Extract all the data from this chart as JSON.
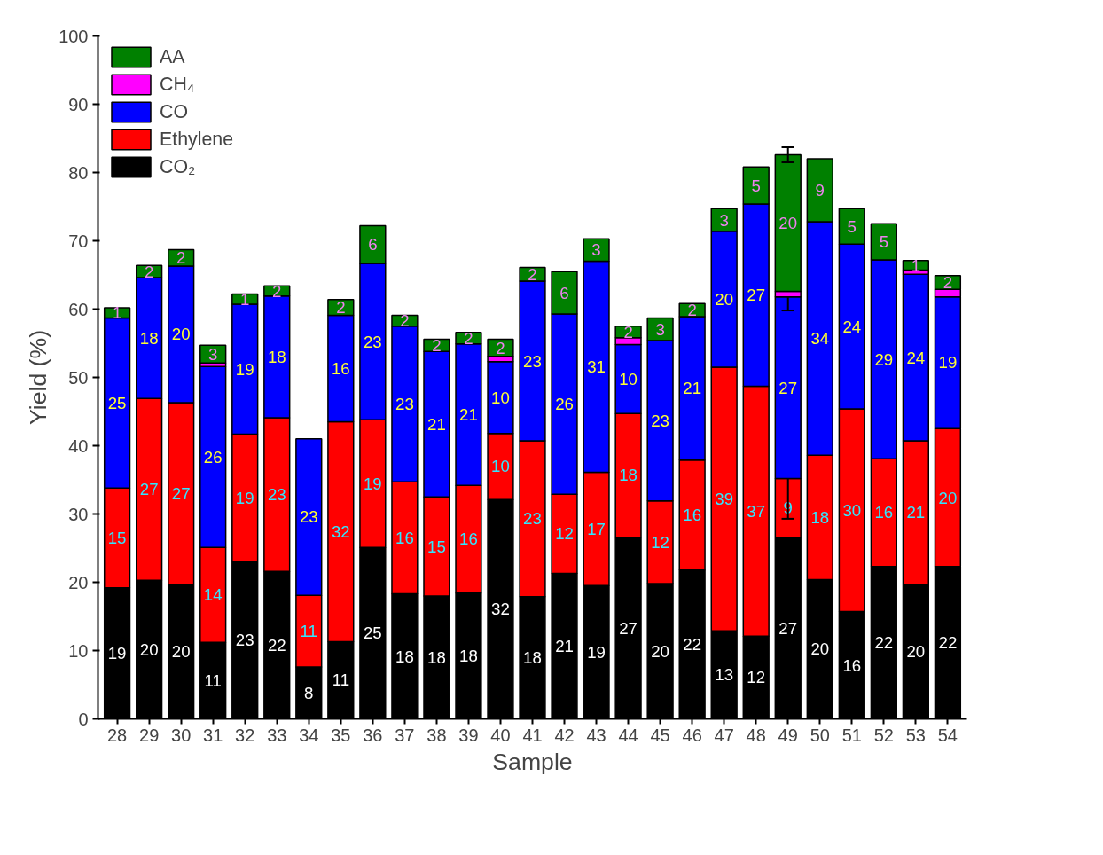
{
  "chart_data": {
    "type": "bar",
    "stacked": true,
    "xlabel": "Sample",
    "ylabel": "Yield (%)",
    "categories": [
      "28",
      "29",
      "30",
      "31",
      "32",
      "33",
      "34",
      "35",
      "36",
      "37",
      "38",
      "39",
      "40",
      "41",
      "42",
      "43",
      "44",
      "45",
      "46",
      "47",
      "48",
      "49",
      "50",
      "51",
      "52",
      "53",
      "54"
    ],
    "ylim": [
      0,
      100
    ],
    "yticks": [
      0,
      10,
      20,
      30,
      40,
      50,
      60,
      70,
      80,
      90,
      100
    ],
    "grid": false,
    "legend": "top left",
    "series": [
      {
        "name": "CO₂",
        "color": "#000000",
        "values": [
          19.2,
          20.3,
          19.7,
          11.2,
          23.1,
          21.6,
          7.6,
          11.3,
          25.1,
          18.3,
          18.0,
          18.4,
          32.1,
          17.9,
          21.3,
          19.5,
          26.6,
          19.8,
          21.8,
          12.9,
          12.1,
          26.6,
          20.4,
          15.7,
          22.3,
          19.7,
          22.3
        ],
        "value_labels": [
          "19",
          "20",
          "20",
          "11",
          "23",
          "22",
          "8",
          "11",
          "25",
          "18",
          "18",
          "18",
          "32",
          "18",
          "21",
          "19",
          "27",
          "20",
          "22",
          "13",
          "12",
          "27",
          "20",
          "16",
          "22",
          "20",
          "22"
        ]
      },
      {
        "name": "Ethylene",
        "color": "#ff0000",
        "values": [
          14.6,
          26.6,
          26.6,
          13.9,
          18.6,
          22.5,
          10.5,
          32.2,
          18.7,
          16.4,
          14.5,
          15.8,
          9.7,
          22.8,
          11.6,
          16.6,
          18.1,
          12.1,
          16.1,
          38.6,
          36.6,
          8.6,
          18.2,
          29.7,
          15.8,
          21.0,
          20.2
        ],
        "value_labels": [
          "15",
          "27",
          "27",
          "14",
          "19",
          "23",
          "11",
          "32",
          "19",
          "16",
          "15",
          "16",
          "10",
          "23",
          "12",
          "17",
          "18",
          "12",
          "16",
          "39",
          "37",
          "9",
          "18",
          "30",
          "16",
          "21",
          "20"
        ],
        "errors": [
          null,
          null,
          null,
          null,
          null,
          null,
          null,
          null,
          null,
          null,
          null,
          null,
          null,
          null,
          null,
          null,
          null,
          null,
          null,
          null,
          null,
          5.9,
          null,
          null,
          null,
          null,
          null
        ]
      },
      {
        "name": "CO",
        "color": "#0000ff",
        "values": [
          24.9,
          17.7,
          20.0,
          26.5,
          19.0,
          17.8,
          22.9,
          15.6,
          22.9,
          22.8,
          21.3,
          20.7,
          10.5,
          23.4,
          26.4,
          30.9,
          10.1,
          23.5,
          21.0,
          19.9,
          26.7,
          26.6,
          34.2,
          24.1,
          29.1,
          24.4,
          19.3
        ],
        "value_labels": [
          "25",
          "18",
          "20",
          "26",
          "19",
          "18",
          "23",
          "16",
          "23",
          "23",
          "21",
          "21",
          "10",
          "23",
          "26",
          "31",
          "10",
          "23",
          "21",
          "20",
          "27",
          "27",
          "34",
          "24",
          "29",
          "24",
          "19"
        ],
        "errors": [
          null,
          null,
          null,
          null,
          null,
          null,
          null,
          null,
          null,
          null,
          null,
          null,
          null,
          null,
          null,
          null,
          null,
          null,
          null,
          null,
          null,
          2.0,
          null,
          null,
          null,
          null,
          null
        ]
      },
      {
        "name": "CH₄",
        "color": "#ff00ff",
        "values": [
          null,
          null,
          null,
          0.5,
          null,
          null,
          null,
          null,
          null,
          null,
          null,
          null,
          0.8,
          null,
          null,
          null,
          1.0,
          null,
          null,
          null,
          null,
          0.8,
          null,
          null,
          null,
          0.6,
          1.1
        ]
      },
      {
        "name": "AA",
        "color": "#008000",
        "values": [
          1.5,
          1.8,
          2.4,
          2.6,
          1.5,
          1.5,
          null,
          2.3,
          5.5,
          1.6,
          1.8,
          1.7,
          2.5,
          2.0,
          6.2,
          3.3,
          1.7,
          3.3,
          1.9,
          3.3,
          5.4,
          20.0,
          9.2,
          5.2,
          5.3,
          1.4,
          2.0
        ],
        "value_labels": [
          "1",
          "2",
          "2",
          "3",
          "1",
          "2",
          null,
          "2",
          "6",
          "2",
          "2",
          "2",
          "2",
          "2",
          "6",
          "3",
          "2",
          "3",
          "2",
          "3",
          "5",
          "20",
          "9",
          "5",
          "5",
          "1",
          "2"
        ],
        "errors": [
          null,
          null,
          null,
          null,
          null,
          null,
          null,
          null,
          null,
          null,
          null,
          null,
          null,
          null,
          null,
          null,
          null,
          null,
          null,
          null,
          null,
          1.1,
          null,
          null,
          null,
          null,
          null
        ]
      }
    ]
  }
}
